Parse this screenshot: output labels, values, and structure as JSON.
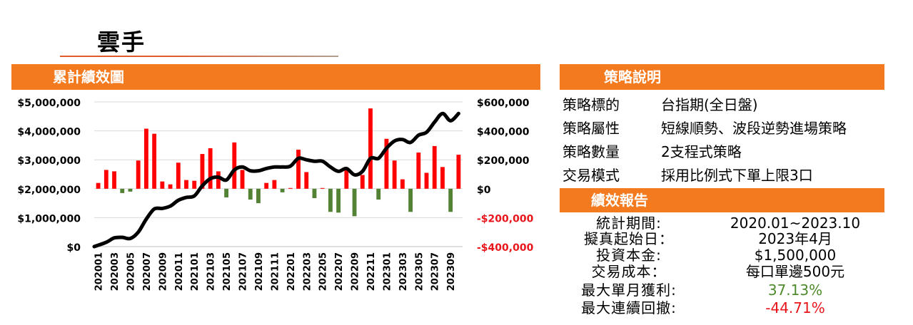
{
  "page": {
    "title": "雲手"
  },
  "chart_section": {
    "header": "累計績效圖"
  },
  "strategy": {
    "header": "策略說明",
    "rows": [
      {
        "key": "策略標的",
        "value": "台指期(全日盤)"
      },
      {
        "key": "策略屬性",
        "value": "短線順勢、波段逆勢進場策略"
      },
      {
        "key": "策略數量",
        "value": "2支程式策略"
      },
      {
        "key": "交易模式",
        "value": "採用比例式下單上限3口"
      }
    ]
  },
  "performance": {
    "header": "績效報告",
    "rows": [
      {
        "key": "統計期間:",
        "value": "2020.01~2023.10",
        "color": "#000000"
      },
      {
        "key": "擬真起始日：",
        "value": "2023年4月",
        "color": "#000000"
      },
      {
        "key": "投資本金:",
        "value": "$1,500,000",
        "color": "#000000"
      },
      {
        "key": "交易成本：",
        "value": "每口單邊500元",
        "color": "#000000"
      },
      {
        "key": "最大單月獲利:",
        "value": "37.13%",
        "color": "#4e8a2c"
      },
      {
        "key": "最大連續回撤:",
        "value": "-44.71%",
        "color": "#e8151b"
      }
    ]
  },
  "chart_data": {
    "type": "bar+line",
    "x": [
      "202001",
      "202002",
      "202003",
      "202004",
      "202005",
      "202006",
      "202007",
      "202008",
      "202009",
      "202010",
      "202011",
      "202012",
      "202101",
      "202102",
      "202103",
      "202104",
      "202105",
      "202106",
      "202107",
      "202108",
      "202109",
      "202110",
      "202111",
      "202112",
      "202201",
      "202202",
      "202203",
      "202204",
      "202205",
      "202206",
      "202207",
      "202208",
      "202209",
      "202210",
      "202211",
      "202212",
      "202301",
      "202302",
      "202303",
      "202304",
      "202305",
      "202306",
      "202307",
      "202308",
      "202309",
      "202310"
    ],
    "x_tick_labels": [
      "202001",
      "202003",
      "202005",
      "202007",
      "202009",
      "202011",
      "202101",
      "202103",
      "202105",
      "202107",
      "202109",
      "202111",
      "202201",
      "202203",
      "202205",
      "202207",
      "202209",
      "202211",
      "202301",
      "202303",
      "202305",
      "202307",
      "202309"
    ],
    "left_axis": {
      "ylim": [
        0,
        5000000
      ],
      "ticks": [
        0,
        1000000,
        2000000,
        3000000,
        4000000,
        5000000
      ],
      "tick_labels": [
        "$0",
        "$1,000,000",
        "$2,000,000",
        "$3,000,000",
        "$4,000,000",
        "$5,000,000"
      ]
    },
    "right_axis": {
      "ylim": [
        -400000,
        600000
      ],
      "ticks": [
        -400000,
        -200000,
        0,
        200000,
        400000,
        600000
      ],
      "tick_labels": [
        "-$400,000",
        "-$200,000",
        "$0",
        "$200,000",
        "$400,000",
        "$600,000"
      ],
      "colors": [
        "#e8151b",
        "#e8151b",
        "#000000",
        "#000000",
        "#000000",
        "#000000"
      ]
    },
    "series": [
      {
        "kind": "bar",
        "axis": "right",
        "positive_color": "#ff0000",
        "negative_color": "#548235",
        "values": [
          40000,
          130000,
          120000,
          -30000,
          -20000,
          195000,
          415000,
          380000,
          50000,
          30000,
          180000,
          60000,
          55000,
          240000,
          280000,
          120000,
          -60000,
          320000,
          130000,
          -75000,
          -100000,
          40000,
          60000,
          -25000,
          5000,
          270000,
          115000,
          -65000,
          5000,
          -160000,
          -165000,
          130000,
          -190000,
          95000,
          555000,
          -75000,
          345000,
          195000,
          65000,
          -160000,
          250000,
          110000,
          295000,
          150000,
          -160000,
          235000
        ]
      },
      {
        "kind": "line",
        "axis": "left",
        "color": "#000000",
        "values": [
          0,
          150000,
          300000,
          320000,
          280000,
          500000,
          950000,
          1300000,
          1320000,
          1400000,
          1600000,
          1700000,
          1750000,
          2100000,
          2350000,
          2400000,
          2300000,
          2650000,
          2750000,
          2620000,
          2620000,
          2700000,
          2750000,
          2750000,
          2780000,
          3050000,
          3000000,
          2950000,
          2950000,
          2750000,
          2600000,
          2700000,
          2480000,
          2600000,
          3050000,
          3050000,
          3400000,
          3650000,
          3700000,
          3600000,
          3850000,
          3950000,
          4300000,
          4600000,
          4350000,
          4600000
        ]
      }
    ]
  }
}
